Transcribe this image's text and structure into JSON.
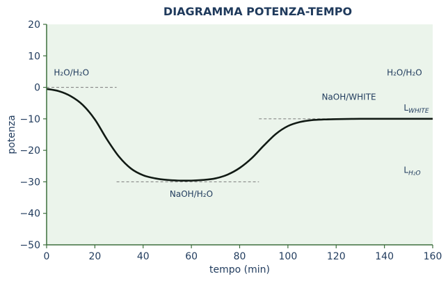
{
  "chart_data": {
    "type": "line",
    "title": "DIAGRAMMA POTENZA-TEMPO",
    "xlabel": "tempo (min)",
    "ylabel": "potenza",
    "xlim": [
      0,
      160
    ],
    "ylim": [
      -50,
      20
    ],
    "xticks": [
      0,
      20,
      40,
      60,
      80,
      100,
      120,
      140,
      160
    ],
    "yticks": [
      20,
      10,
      0,
      -10,
      -20,
      -30,
      -40,
      -50
    ],
    "grid": false,
    "series": [
      {
        "x": [
          0,
          5,
          10,
          15,
          20,
          25,
          30,
          35,
          40,
          45,
          50,
          55,
          60,
          65,
          70,
          75,
          80,
          85,
          90,
          95,
          100,
          105,
          110,
          115,
          120,
          130,
          140,
          150,
          160
        ],
        "y": [
          -0.5,
          -1.2,
          -2.8,
          -5.6,
          -10.2,
          -16.5,
          -22.0,
          -25.8,
          -27.9,
          -28.9,
          -29.4,
          -29.6,
          -29.6,
          -29.4,
          -28.9,
          -27.7,
          -25.6,
          -22.5,
          -18.5,
          -14.8,
          -12.3,
          -11.0,
          -10.4,
          -10.2,
          -10.1,
          -10.0,
          -10.0,
          -10.0,
          -10.0
        ]
      }
    ],
    "reference_lines": [
      {
        "y": 0,
        "x_start": 0,
        "x_end": 29
      },
      {
        "y": -30,
        "x_start": 29,
        "x_end": 88
      },
      {
        "y": -10,
        "x_start": 88,
        "x_end": 160
      }
    ],
    "annotations": [
      {
        "text": "H₂O/H₂O",
        "x": 3,
        "y": 3.8
      },
      {
        "text": "NaOH/H₂O",
        "x": 51,
        "y": -34.8
      },
      {
        "text": "NaOH/WHITE",
        "x": 114,
        "y": -4.0
      },
      {
        "text": "H₂O/H₂O",
        "x": 141,
        "y": 3.8
      },
      {
        "text": "L",
        "sub": "WHITE",
        "x": 148,
        "y": -7.4
      },
      {
        "text": "L",
        "sub": "H₂O",
        "x": 148,
        "y": -27.2
      }
    ],
    "colors": {
      "background": "#ebf4eb",
      "line": "#111a14",
      "text": "#1f3a5c",
      "axis": "#3c6e3c",
      "reference": "#888888"
    }
  }
}
